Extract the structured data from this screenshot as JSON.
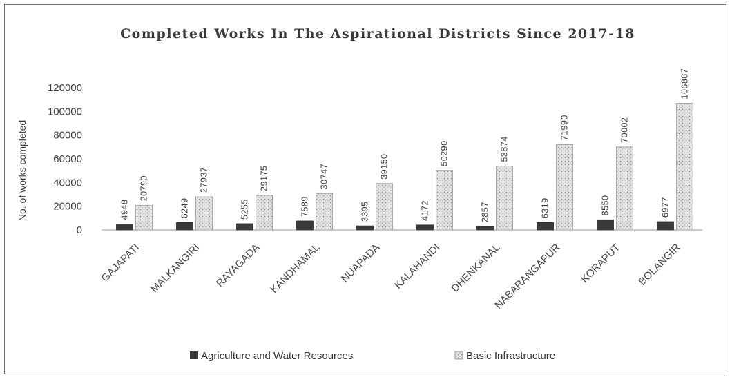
{
  "chart_data": {
    "type": "bar",
    "title": "Completed Works In The Aspirational Districts Since 2017-18",
    "xlabel": "",
    "ylabel": "No. of works completed",
    "ylim": [
      0,
      120000
    ],
    "yticks": [
      0,
      20000,
      40000,
      60000,
      80000,
      100000,
      120000
    ],
    "grid": false,
    "legend_position": "bottom",
    "categories": [
      "GAJAPATI",
      "MALKANGIRI",
      "RAYAGADA",
      "KANDHAMAL",
      "NUAPADA",
      "KALAHANDI",
      "DHENKANAL",
      "NABARANGAPUR",
      "KORAPUT",
      "BOLANGIR"
    ],
    "series": [
      {
        "name": "Agriculture and Water Resources",
        "color": "#3a3a3a",
        "pattern": "solid",
        "values": [
          4948,
          6249,
          5255,
          7589,
          3395,
          4172,
          2857,
          6319,
          8550,
          6977
        ],
        "labels": [
          "4948",
          "6249",
          "5255",
          "7589",
          "3395",
          "4172",
          "2857",
          "6319",
          "8550",
          "6977"
        ]
      },
      {
        "name": "Basic Infrastructure",
        "color": "#dcdcdc",
        "pattern": "dotted",
        "values": [
          20790,
          27937,
          29175,
          30747,
          39150,
          50290,
          53874,
          71990,
          70002,
          106887
        ],
        "labels": [
          "20790",
          "27937",
          "29175",
          "30747",
          "39150",
          "50290",
          "53874",
          "71990",
          "70002",
          "106887"
        ]
      }
    ]
  }
}
